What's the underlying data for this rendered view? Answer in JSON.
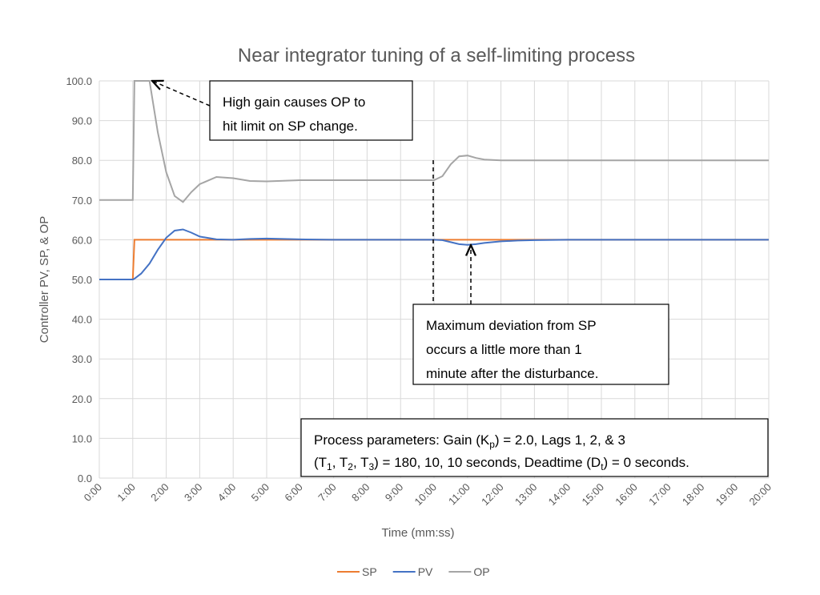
{
  "chart_data": {
    "type": "line",
    "title": "Near integrator tuning of a self-limiting process",
    "x_label": "Time (mm:ss)",
    "y_label": "Controller PV, SP, & OP",
    "x": [
      0,
      0.5,
      1,
      1.05,
      1.25,
      1.5,
      1.75,
      2,
      2.25,
      2.5,
      2.75,
      3,
      3.5,
      4,
      4.5,
      5,
      6,
      7,
      8,
      9,
      10,
      10.25,
      10.5,
      10.75,
      11,
      11.25,
      11.5,
      12,
      12.5,
      13,
      14,
      15,
      16,
      17,
      18,
      19,
      20
    ],
    "series": [
      {
        "name": "SP",
        "color": "#ed7d31",
        "values": [
          50,
          50,
          50,
          60,
          60,
          60,
          60,
          60,
          60,
          60,
          60,
          60,
          60,
          60,
          60,
          60,
          60,
          60,
          60,
          60,
          60,
          60,
          60,
          60,
          60,
          60,
          60,
          60,
          60,
          60,
          60,
          60,
          60,
          60,
          60,
          60,
          60
        ]
      },
      {
        "name": "PV",
        "color": "#4472c4",
        "values": [
          50,
          50,
          50,
          50.2,
          51.5,
          54,
          57.5,
          60.5,
          62.3,
          62.6,
          61.8,
          60.8,
          60.1,
          60,
          60.2,
          60.3,
          60.1,
          60,
          60,
          60,
          60,
          59.9,
          59.4,
          58.9,
          58.7,
          58.9,
          59.2,
          59.6,
          59.8,
          59.9,
          60,
          60,
          60,
          60,
          60,
          60,
          60
        ]
      },
      {
        "name": "OP",
        "color": "#a5a5a5",
        "values": [
          70,
          70,
          70,
          100,
          100,
          100,
          87,
          77,
          71,
          69.5,
          72,
          74,
          75.8,
          75.5,
          74.8,
          74.7,
          75,
          75,
          75,
          75,
          75,
          76,
          79,
          81,
          81.2,
          80.6,
          80.2,
          80,
          80,
          80,
          80,
          80,
          80,
          80,
          80,
          80,
          80
        ]
      }
    ],
    "xlim": [
      0,
      20
    ],
    "xticks": [
      {
        "value": 0,
        "label": "0:00"
      },
      {
        "value": 1,
        "label": "1:00"
      },
      {
        "value": 2,
        "label": "2:00"
      },
      {
        "value": 3,
        "label": "3:00"
      },
      {
        "value": 4,
        "label": "4:00"
      },
      {
        "value": 5,
        "label": "5:00"
      },
      {
        "value": 6,
        "label": "6:00"
      },
      {
        "value": 7,
        "label": "7:00"
      },
      {
        "value": 8,
        "label": "8:00"
      },
      {
        "value": 9,
        "label": "9:00"
      },
      {
        "value": 10,
        "label": "10:00"
      },
      {
        "value": 11,
        "label": "11:00"
      },
      {
        "value": 12,
        "label": "12:00"
      },
      {
        "value": 13,
        "label": "13:00"
      },
      {
        "value": 14,
        "label": "14:00"
      },
      {
        "value": 15,
        "label": "15:00"
      },
      {
        "value": 16,
        "label": "16:00"
      },
      {
        "value": 17,
        "label": "17:00"
      },
      {
        "value": 18,
        "label": "18:00"
      },
      {
        "value": 19,
        "label": "19:00"
      },
      {
        "value": 20,
        "label": "20:00"
      }
    ],
    "ylim": [
      0,
      100
    ],
    "yticks": [
      {
        "value": 0,
        "label": "0.0"
      },
      {
        "value": 10,
        "label": "10.0"
      },
      {
        "value": 20,
        "label": "20.0"
      },
      {
        "value": 30,
        "label": "30.0"
      },
      {
        "value": 40,
        "label": "40.0"
      },
      {
        "value": 50,
        "label": "50.0"
      },
      {
        "value": 60,
        "label": "60.0"
      },
      {
        "value": 70,
        "label": "70.0"
      },
      {
        "value": 80,
        "label": "80.0"
      },
      {
        "value": 90,
        "label": "90.0"
      },
      {
        "value": 100,
        "label": "100.0"
      }
    ],
    "grid": true,
    "legend": "bottom",
    "annotations": [
      {
        "lines": [
          [
            "High gain causes OP to"
          ],
          [
            "hit limit on SP change."
          ]
        ]
      },
      {
        "lines": [
          [
            "Maximum deviation from SP"
          ],
          [
            "occurs a little more than 1"
          ],
          [
            "minute after the disturbance."
          ]
        ]
      },
      {
        "lines": [
          [
            "Process parameters:  Gain (K",
            "p",
            ") = 2.0, Lags 1, 2, & 3"
          ],
          [
            "(T",
            "1",
            ", T",
            "2",
            ", T",
            "3",
            ") = 180, 10, 10 seconds, Deadtime (D",
            "t",
            ") = 0 seconds."
          ]
        ]
      }
    ]
  }
}
